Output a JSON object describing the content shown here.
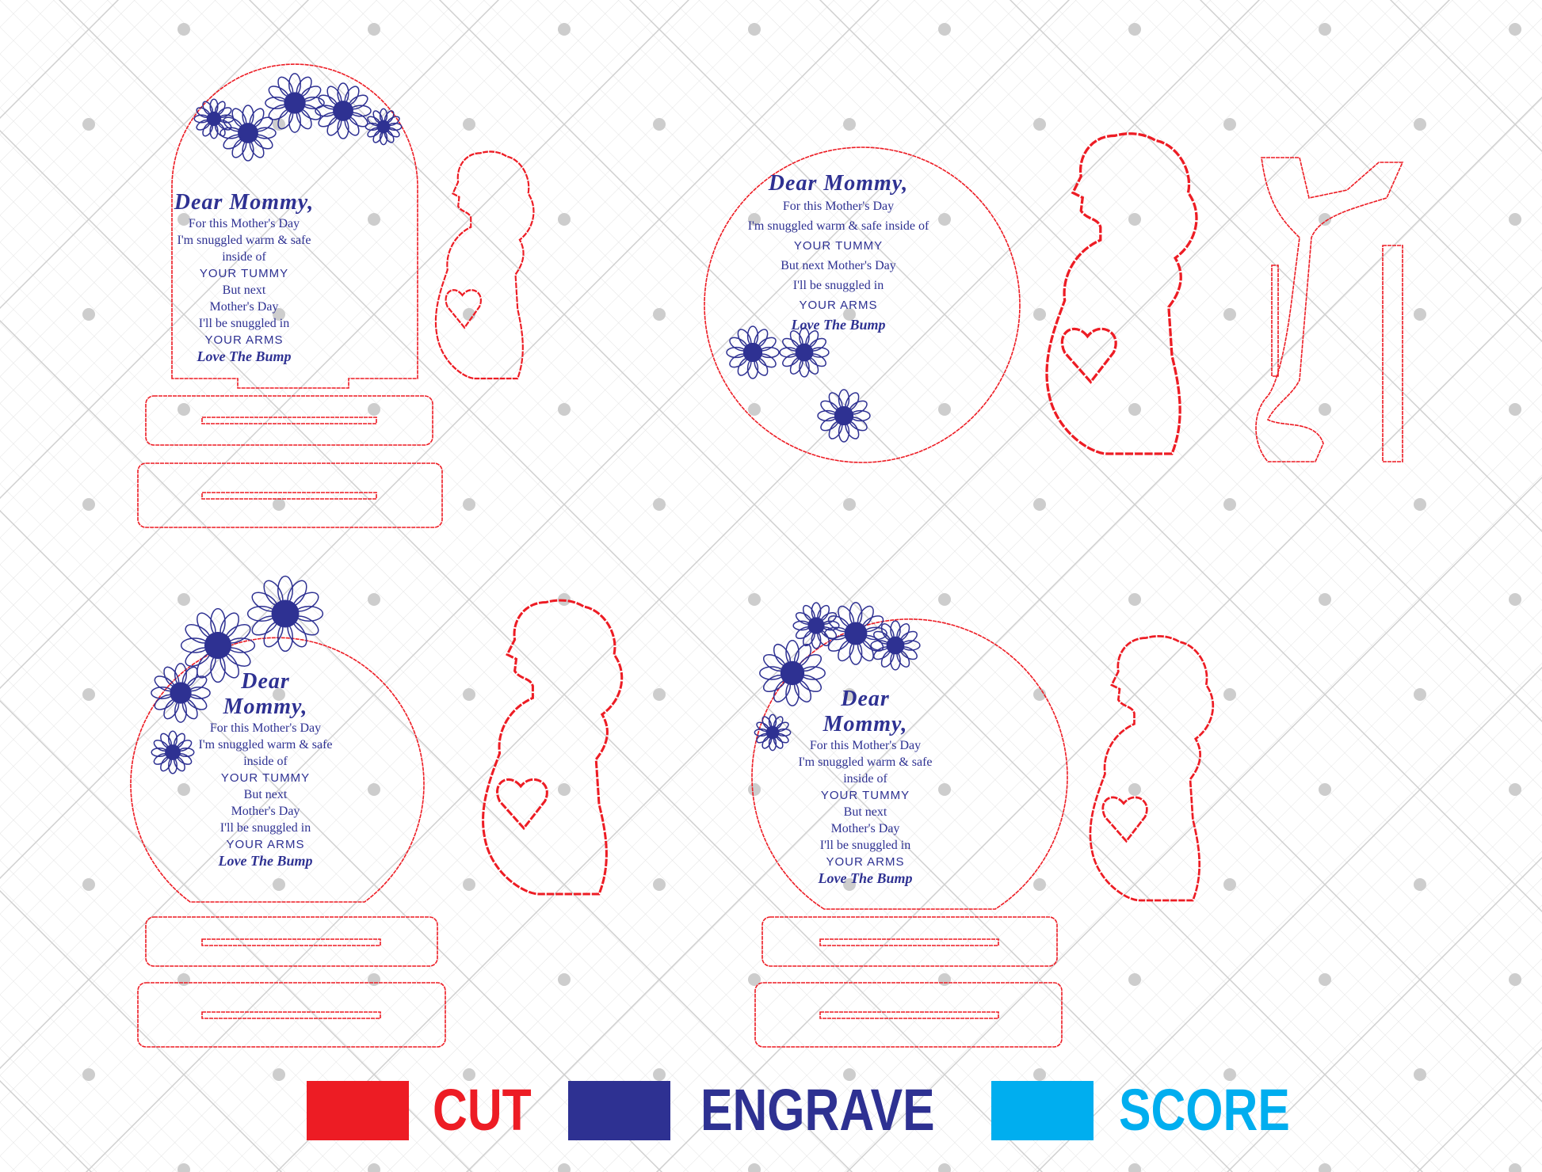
{
  "designs": [
    {
      "name": "arch-sunflower-top",
      "title": [
        "Dear Mommy,"
      ],
      "lines": [
        "For this Mother's Day",
        "I'm snuggled warm & safe",
        "inside of",
        "YOUR TUMMY",
        "But next",
        "Mother's Day",
        "I'll be snuggled in",
        "YOUR ARMS",
        "Love The Bump"
      ]
    },
    {
      "name": "circle-sunflower-bottom",
      "title": [
        "Dear Mommy,"
      ],
      "lines": [
        "For this Mother's Day",
        "I'm snuggled warm & safe inside of",
        "YOUR TUMMY",
        "But next Mother's Day",
        "I'll be snuggled in",
        "YOUR ARMS",
        "Love The Bump"
      ]
    },
    {
      "name": "circle-sunflower-left",
      "title": [
        "Dear",
        "Mommy,"
      ],
      "lines": [
        "For this Mother's Day",
        "I'm snuggled warm & safe",
        "inside of",
        "YOUR TUMMY",
        "But next",
        "Mother's Day",
        "I'll be snuggled in",
        "YOUR ARMS",
        "Love The Bump"
      ]
    },
    {
      "name": "circle-sunflower-corner",
      "title": [
        "Dear",
        "Mommy,"
      ],
      "lines": [
        "For this Mother's Day",
        "I'm snuggled warm & safe",
        "inside of",
        "YOUR TUMMY",
        "But next",
        "Mother's Day",
        "I'll be snuggled in",
        "YOUR ARMS",
        "Love The Bump"
      ]
    }
  ],
  "legend": [
    {
      "label": "CUT",
      "color": "#ed1c24"
    },
    {
      "label": "ENGRAVE",
      "color": "#2e3192"
    },
    {
      "label": "SCORE",
      "color": "#00aeef"
    }
  ],
  "colors": {
    "cut": "#ed1c24",
    "engrave": "#2e3192",
    "score": "#00aeef",
    "grid": "#d0d0d0"
  }
}
